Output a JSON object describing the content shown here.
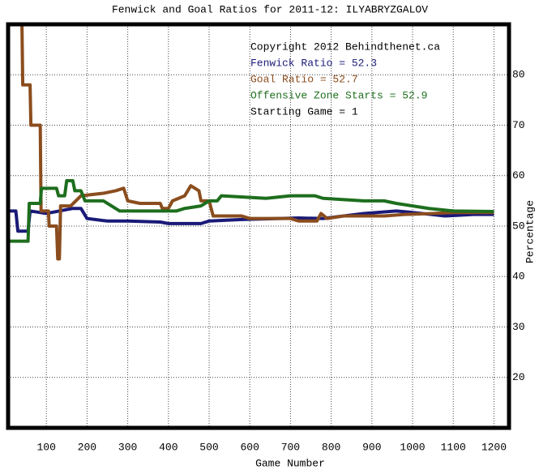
{
  "chart_data": {
    "type": "line",
    "title": "Fenwick and Goal Ratios for 2011-12: ILYABRYZGALOV",
    "xlabel": "Game Number",
    "ylabel": "Percentage",
    "annotations": [
      "Copyright 2012 Behindthenet.ca",
      "Starting Game = 1"
    ],
    "xlim": [
      6,
      1237
    ],
    "ylim": [
      10,
      90
    ],
    "xticks": [
      100,
      200,
      300,
      400,
      500,
      600,
      700,
      800,
      900,
      1000,
      1100,
      1200
    ],
    "yticks": [
      20,
      30,
      40,
      50,
      60,
      70,
      80
    ],
    "grid": true,
    "series": [
      {
        "name": "Fenwick Ratio = 52.3",
        "color": "#1a1a78",
        "x": [
          6,
          25,
          30,
          55,
          60,
          100,
          165,
          185,
          200,
          250,
          300,
          380,
          400,
          480,
          500,
          580,
          720,
          780,
          880,
          960,
          1000,
          1080,
          1150,
          1200
        ],
        "values": [
          53,
          53,
          49,
          49,
          53,
          52.5,
          53.5,
          53.5,
          51.5,
          51,
          51,
          50.8,
          50.5,
          50.5,
          51,
          51.3,
          51.6,
          51.5,
          52.5,
          53,
          52.7,
          52,
          52.3,
          52.3
        ]
      },
      {
        "name": "Goal Ratio = 52.7",
        "color": "#8b4d1e",
        "x": [
          40,
          42,
          60,
          62,
          85,
          87,
          105,
          107,
          125,
          128,
          132,
          135,
          160,
          185,
          240,
          270,
          290,
          300,
          330,
          380,
          385,
          400,
          410,
          440,
          455,
          475,
          480,
          500,
          510,
          580,
          600,
          700,
          720,
          765,
          775,
          790,
          830,
          930,
          980,
          1050,
          1100,
          1200
        ],
        "values": [
          90,
          78,
          78,
          70,
          70,
          53,
          53,
          50,
          50,
          43.5,
          43.5,
          54,
          54,
          56,
          56.5,
          57,
          57.5,
          55,
          54.5,
          54.5,
          53.5,
          53.5,
          55,
          56,
          58,
          57,
          55,
          55,
          52,
          52,
          51.5,
          51.5,
          51,
          51,
          52.5,
          51.5,
          52,
          52,
          52.3,
          52.5,
          52.7,
          52.7
        ]
      },
      {
        "name": "Offensive Zone Starts = 52.9",
        "color": "#1e6e1e",
        "x": [
          6,
          55,
          58,
          85,
          88,
          125,
          130,
          145,
          150,
          165,
          170,
          185,
          195,
          240,
          280,
          420,
          440,
          480,
          500,
          520,
          530,
          640,
          700,
          760,
          780,
          880,
          930,
          960,
          1000,
          1040,
          1100,
          1200
        ],
        "values": [
          47,
          47,
          54.5,
          54.5,
          57.5,
          57.5,
          56,
          56,
          59,
          59,
          57,
          57,
          55,
          55,
          53,
          53,
          53.5,
          54,
          55,
          55,
          56,
          55.5,
          56,
          56,
          55.5,
          55,
          55,
          54.5,
          54,
          53.5,
          53,
          52.9
        ]
      }
    ]
  }
}
